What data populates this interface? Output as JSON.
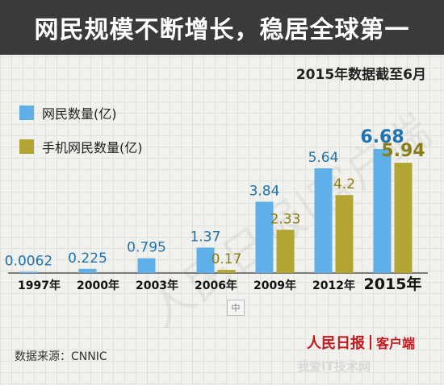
{
  "title": "网民规模不断增长，稳居全球第一",
  "subtitle": "2015年数据截至6月",
  "source": "数据来源：CNNIC",
  "brand": {
    "name": "人民日报",
    "client": "客户端"
  },
  "watermark": "人民日报|客户端",
  "mid_tag": "中",
  "site_mark": "我爱IT技术网",
  "colors": {
    "netizens": "#5fb0e8",
    "mobile": "#b3a534",
    "title_bg": "#3a3a3a",
    "brand": "#c8161d"
  },
  "chart_data": {
    "type": "bar",
    "categories": [
      "1997年",
      "2000年",
      "2003年",
      "2006年",
      "2009年",
      "2012年",
      "2015年"
    ],
    "series": [
      {
        "name": "网民数量(亿)",
        "values": [
          0.0062,
          0.225,
          0.795,
          1.37,
          3.84,
          5.64,
          6.68
        ],
        "labels": [
          "0.0062",
          "0.225",
          "0.795",
          "1.37",
          "3.84",
          "5.64",
          "6.68"
        ]
      },
      {
        "name": "手机网民数量(亿)",
        "values": [
          null,
          null,
          null,
          0.17,
          2.33,
          4.2,
          5.94
        ],
        "labels": [
          "",
          "",
          "",
          "0.17",
          "2.33",
          "4.2",
          "5.94"
        ]
      }
    ],
    "ylim": [
      0,
      6.68
    ],
    "grid": true,
    "legend": "top-left"
  }
}
